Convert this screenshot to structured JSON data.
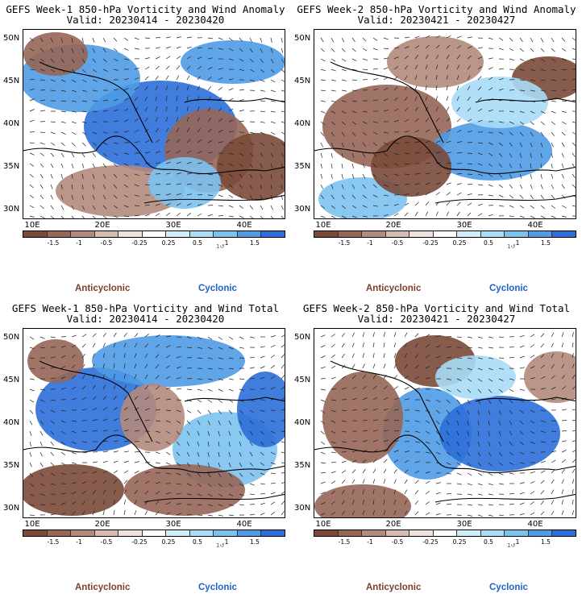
{
  "chart_data": [
    {
      "type": "heatmap",
      "title": "GEFS Week-1 850-hPa Vorticity and Wind Anomaly",
      "subtitle": "Valid: 20230414 - 20230420",
      "x_ticks": [
        "10E",
        "20E",
        "30E",
        "40E"
      ],
      "y_ticks": [
        "50N",
        "45N",
        "40N",
        "35N",
        "30N"
      ],
      "lon_range": [
        8,
        45
      ],
      "lat_range": [
        29,
        51
      ],
      "colorbar_ticks": [
        "-1.5",
        "-1",
        "-0.5",
        "-0.25",
        "0.25",
        "0.5",
        "1",
        "1.5"
      ],
      "colorbar_ref": "1↺",
      "legend": {
        "negative": "Anticyclonic",
        "positive": "Cyclonic"
      }
    },
    {
      "type": "heatmap",
      "title": "GEFS Week-2 850-hPa Vorticity and Wind Anomaly",
      "subtitle": "Valid: 20230421 - 20230427",
      "x_ticks": [
        "10E",
        "20E",
        "30E",
        "40E"
      ],
      "y_ticks": [
        "50N",
        "45N",
        "40N",
        "35N",
        "30N"
      ],
      "lon_range": [
        8,
        45
      ],
      "lat_range": [
        29,
        51
      ],
      "colorbar_ticks": [
        "-1.5",
        "-1",
        "-0.5",
        "-0.25",
        "0.25",
        "0.5",
        "1",
        "1.5"
      ],
      "colorbar_ref": "1↺",
      "legend": {
        "negative": "Anticyclonic",
        "positive": "Cyclonic"
      }
    },
    {
      "type": "heatmap",
      "title": "GEFS Week-1 850-hPa Vorticity and Wind Total",
      "subtitle": "Valid: 20230414 - 20230420",
      "x_ticks": [
        "10E",
        "20E",
        "30E",
        "40E"
      ],
      "y_ticks": [
        "50N",
        "45N",
        "40N",
        "35N",
        "30N"
      ],
      "lon_range": [
        8,
        45
      ],
      "lat_range": [
        29,
        51
      ],
      "colorbar_ticks": [
        "-1.5",
        "-1",
        "-0.5",
        "-0.25",
        "0.25",
        "0.5",
        "1",
        "1.5"
      ],
      "colorbar_ref": "1↺",
      "legend": {
        "negative": "Anticyclonic",
        "positive": "Cyclonic"
      }
    },
    {
      "type": "heatmap",
      "title": "GEFS Week-2 850-hPa Vorticity and Wind Total",
      "subtitle": "Valid: 20230421 - 20230427",
      "x_ticks": [
        "10E",
        "20E",
        "30E",
        "40E"
      ],
      "y_ticks": [
        "50N",
        "45N",
        "40N",
        "35N",
        "30N"
      ],
      "lon_range": [
        8,
        45
      ],
      "lat_range": [
        29,
        51
      ],
      "colorbar_ticks": [
        "-1.5",
        "-1",
        "-0.5",
        "-0.25",
        "0.25",
        "0.5",
        "1",
        "1.5"
      ],
      "colorbar_ref": "1↺",
      "legend": {
        "negative": "Anticyclonic",
        "positive": "Cyclonic"
      }
    }
  ],
  "colors": {
    "anticyclonic_scale": [
      "#7a4a3a",
      "#966656",
      "#b38a7c",
      "#d7bcb2",
      "#efe1dc"
    ],
    "neutral": "#ffffff",
    "cyclonic_scale": [
      "#d3eefb",
      "#a9dcf6",
      "#7cc2ef",
      "#4f9be6",
      "#2c6fd9"
    ],
    "legend_anticyclonic": "#7b3f2e",
    "legend_cyclonic": "#1f62c7"
  }
}
